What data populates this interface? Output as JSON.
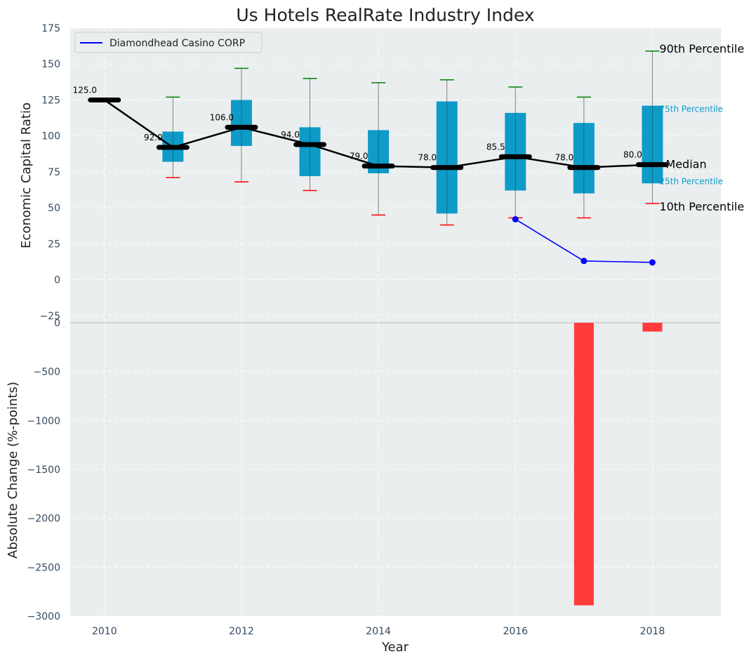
{
  "chart_data": {
    "type": "boxplot+line+bar",
    "title": "Us Hotels RealRate Industry Index",
    "xlabel": "Year",
    "x_ticks": [
      2010,
      2012,
      2014,
      2016,
      2018
    ],
    "xlim": [
      2009.5,
      2019.0
    ],
    "top_panel": {
      "ylabel": "Economic Capital Ratio",
      "ylim": [
        -30,
        175
      ],
      "y_ticks": [
        -25,
        0,
        25,
        50,
        75,
        100,
        125,
        150,
        175
      ],
      "y_tick_labels": [
        "−25",
        "0",
        "25",
        "50",
        "75",
        "100",
        "125",
        "150",
        "175"
      ],
      "years": [
        2010,
        2011,
        2012,
        2013,
        2014,
        2015,
        2016,
        2017,
        2018
      ],
      "p10": [
        125,
        71,
        68,
        62,
        45,
        38,
        43,
        43,
        53
      ],
      "p25": [
        125,
        82,
        93,
        72,
        74,
        46,
        62,
        60,
        67
      ],
      "median": [
        125,
        92,
        106,
        94,
        79,
        78,
        85.5,
        78,
        80
      ],
      "median_labels": [
        "125.0",
        "92.0",
        "106.0",
        "94.0",
        "79.0",
        "78.0",
        "85.5",
        "78.0",
        "80.0"
      ],
      "p75": [
        125,
        103,
        125,
        106,
        104,
        124,
        116,
        109,
        121
      ],
      "p90": [
        125,
        127,
        147,
        140,
        137,
        139,
        134,
        127,
        159
      ],
      "company": {
        "name": "Diamondhead Casino CORP",
        "years": [
          2016,
          2017,
          2018
        ],
        "values": [
          42,
          13,
          12
        ],
        "color": "#0000ff"
      },
      "legend_loc": "upper left",
      "annotations": {
        "p90": "90th Percentile",
        "p75": "75th Percentile",
        "median": "Median",
        "p25": "25th Percentile",
        "p10": "10th Percentile"
      },
      "colors": {
        "box": "#0e9bc8",
        "median_line": "#000000",
        "p90_cap": "#008000",
        "p10_cap": "#ff0000",
        "whisker": "#808080"
      }
    },
    "bottom_panel": {
      "type": "bar",
      "ylabel": "Absolute Change (%-points)",
      "ylim": [
        -3000,
        0
      ],
      "y_ticks": [
        0,
        -500,
        -1000,
        -1500,
        -2000,
        -2500,
        -3000
      ],
      "y_tick_labels": [
        "0",
        "−500",
        "−1000",
        "−1500",
        "−2000",
        "−2500",
        "−3000"
      ],
      "bars": [
        {
          "year": 2017,
          "value": -2890
        },
        {
          "year": 2018,
          "value": -90
        }
      ],
      "bar_color": "#ff3b3b"
    },
    "background": "#eaeeef",
    "grid": true
  }
}
